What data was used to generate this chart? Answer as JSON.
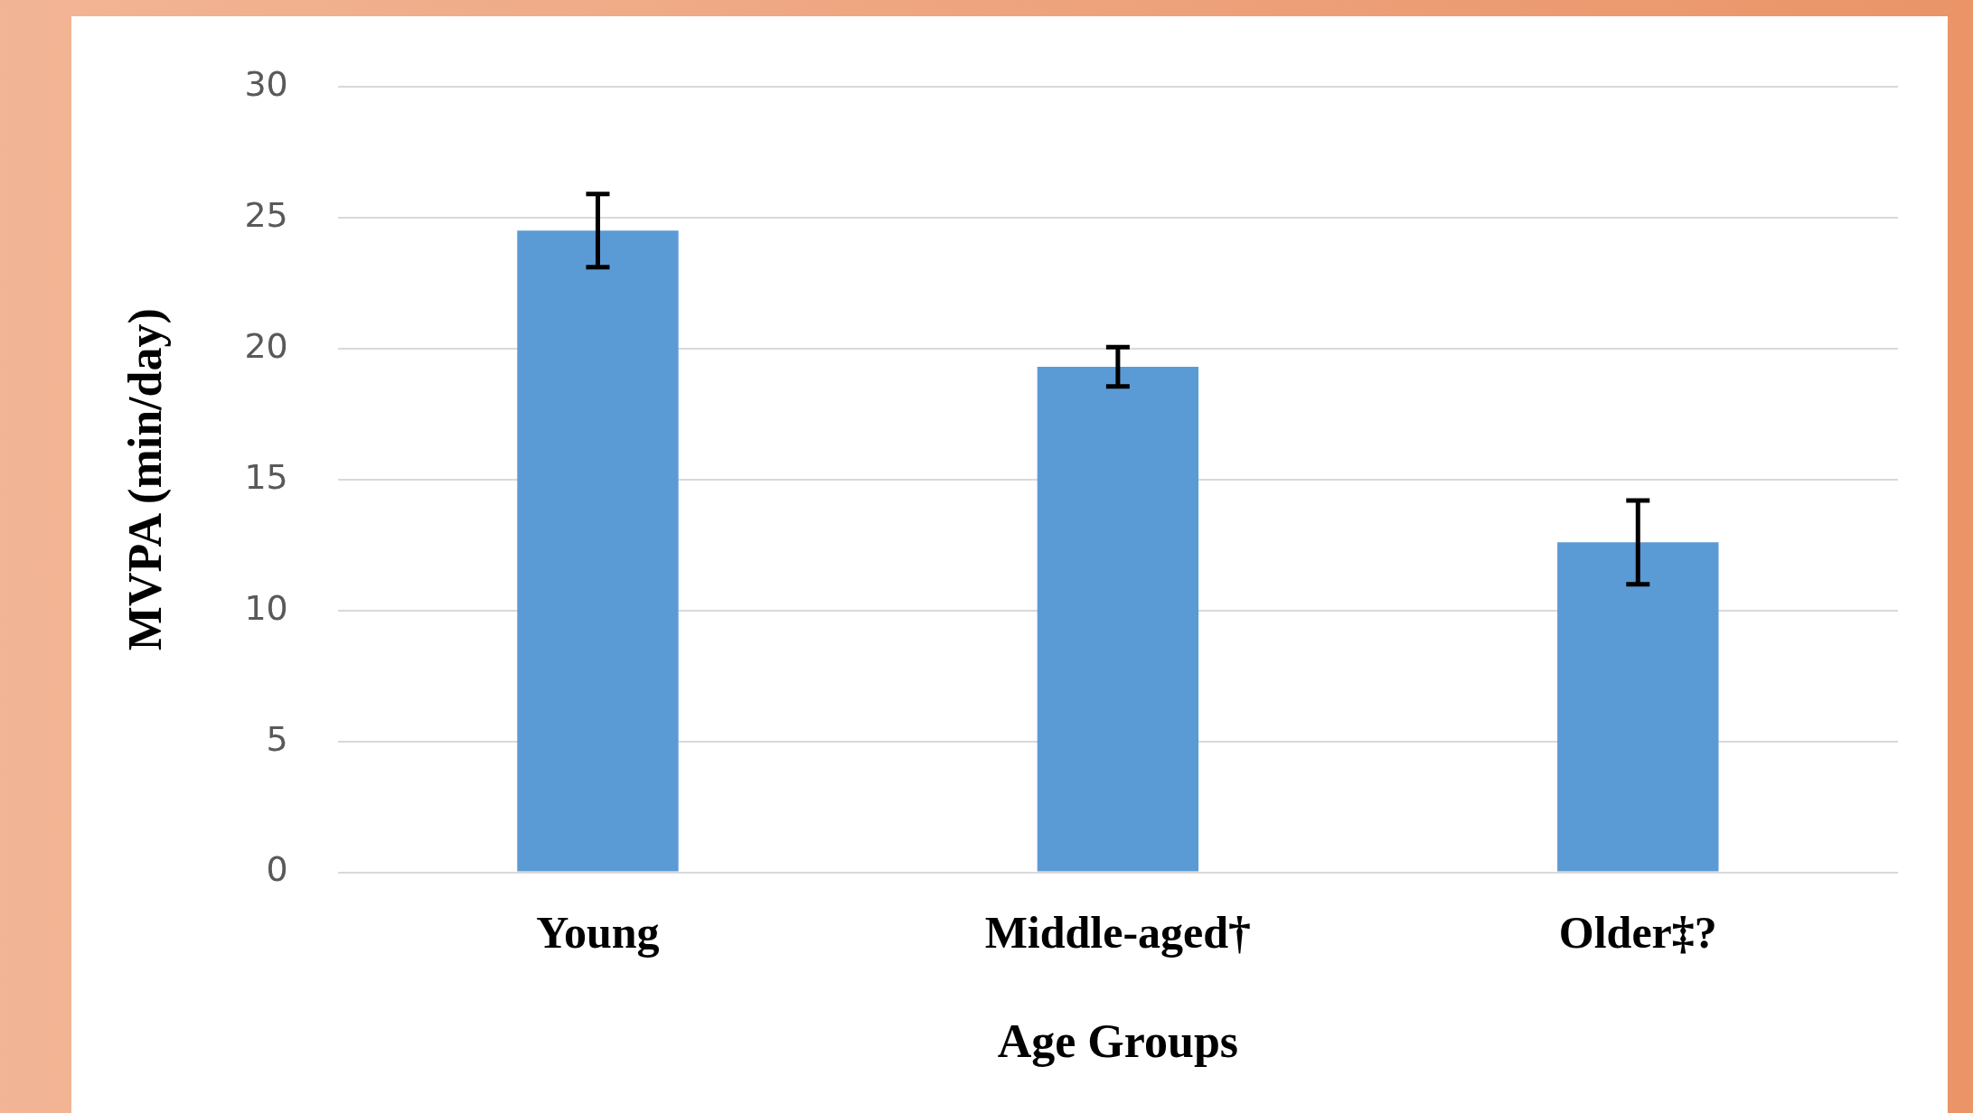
{
  "chart_data": {
    "type": "bar",
    "xlabel": "Age Groups",
    "ylabel": "MVPA (min/day)",
    "categories": [
      "Young",
      "Middle-aged†",
      "Older‡?"
    ],
    "values": [
      24.5,
      19.3,
      12.6
    ],
    "errors": [
      1.4,
      0.75,
      1.6
    ],
    "color": "#5b9bd5",
    "ylim": [
      0,
      30
    ],
    "yticks": [
      0,
      5,
      10,
      15,
      20,
      25,
      30
    ],
    "grid": "y",
    "legend": false
  }
}
